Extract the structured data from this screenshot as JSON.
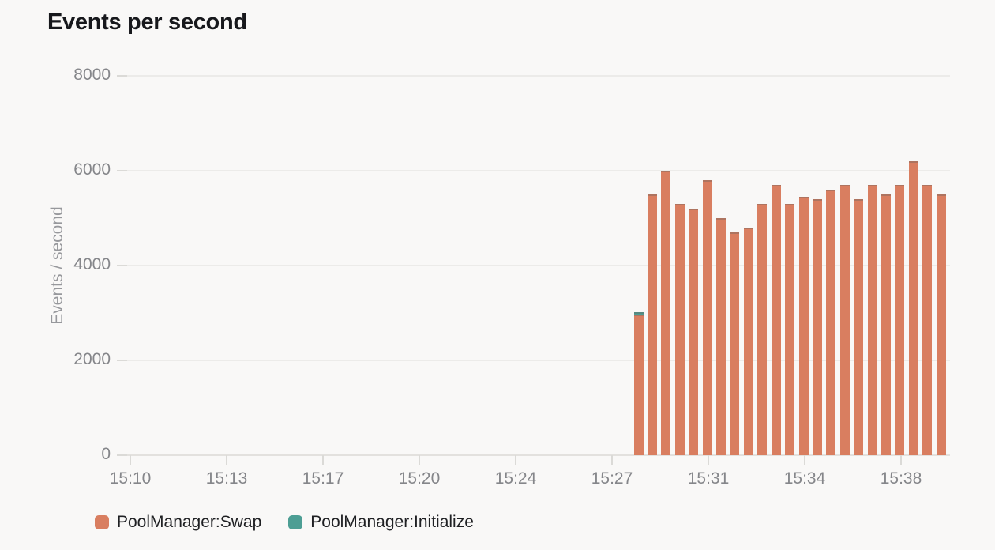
{
  "panel": {
    "title": "Events per second"
  },
  "chart_data": {
    "type": "bar",
    "title": "Events per second",
    "xlabel": "",
    "ylabel": "Events / second",
    "ylim": [
      0,
      8000
    ],
    "y_ticks": [
      0,
      2000,
      4000,
      6000,
      8000
    ],
    "x_tick_labels": [
      "15:10",
      "15:13",
      "15:17",
      "15:20",
      "15:24",
      "15:27",
      "15:31",
      "15:34",
      "15:38"
    ],
    "grid": true,
    "legend_position": "bottom",
    "bar_bucket_seconds": 30,
    "categories": [
      "15:28:00",
      "15:28:30",
      "15:29:00",
      "15:29:30",
      "15:30:00",
      "15:30:30",
      "15:31:00",
      "15:31:30",
      "15:32:00",
      "15:32:30",
      "15:33:00",
      "15:33:30",
      "15:34:00",
      "15:34:30",
      "15:35:00",
      "15:35:30",
      "15:36:00",
      "15:36:30",
      "15:37:00",
      "15:37:30",
      "15:38:00",
      "15:38:30",
      "15:39:00"
    ],
    "series": [
      {
        "name": "PoolManager:Swap",
        "color": "#D97E60",
        "values": [
          2970,
          5500,
          6000,
          5300,
          5200,
          5800,
          5000,
          4700,
          4800,
          5300,
          5700,
          5300,
          5450,
          5400,
          5600,
          5700,
          5400,
          5700,
          5500,
          5700,
          6200,
          5700,
          5500
        ]
      },
      {
        "name": "PoolManager:Initialize",
        "color": "#4D9E94",
        "values": [
          50,
          0,
          0,
          0,
          0,
          0,
          0,
          0,
          0,
          0,
          0,
          0,
          0,
          0,
          0,
          0,
          0,
          0,
          0,
          0,
          0,
          0,
          0
        ]
      }
    ]
  }
}
